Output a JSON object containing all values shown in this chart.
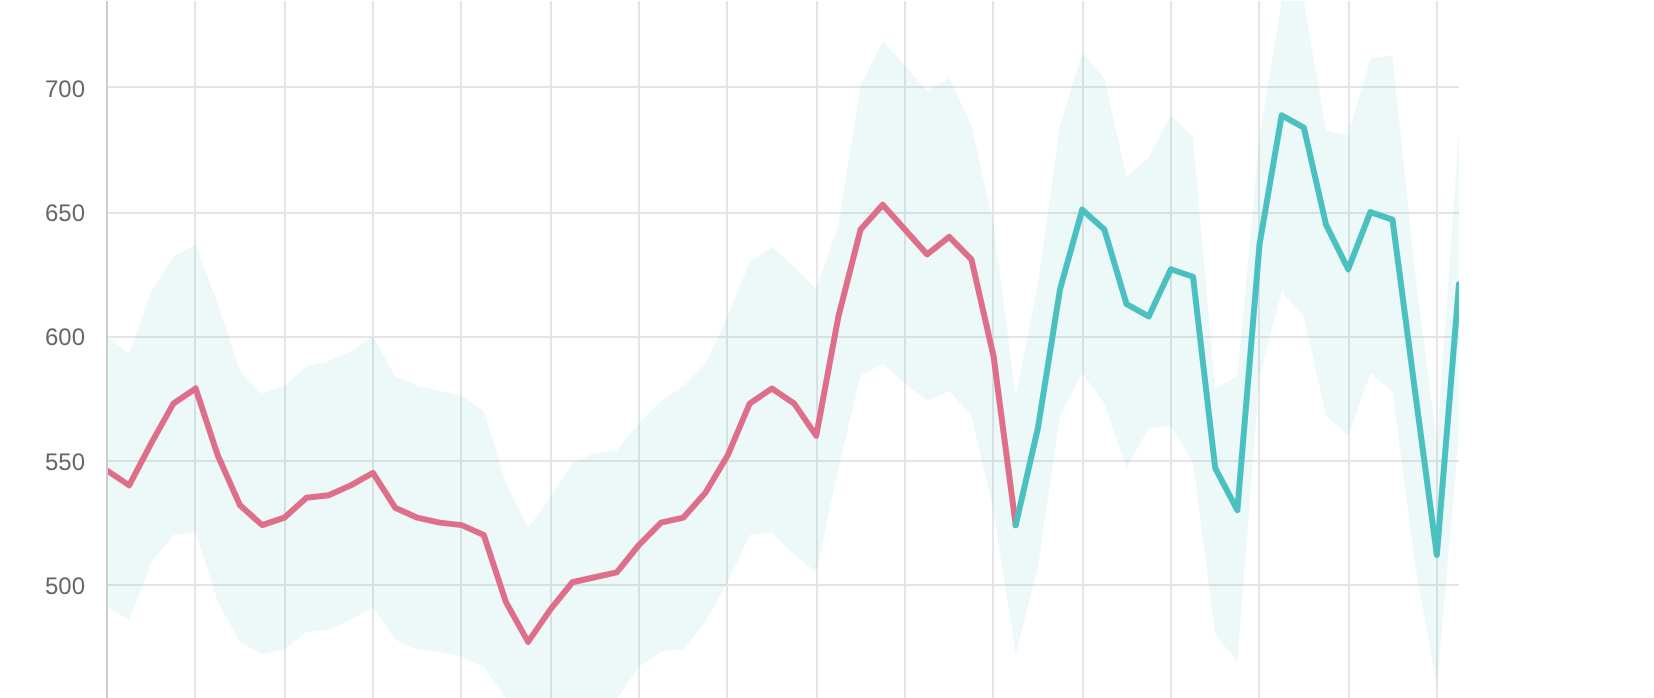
{
  "chart_data": {
    "type": "line",
    "categories": [
      null,
      null,
      null,
      null,
      null,
      null,
      null,
      null,
      null,
      null,
      null,
      null,
      null,
      null,
      null,
      null,
      null,
      null,
      null,
      null,
      null,
      null,
      null,
      null,
      null,
      null,
      null,
      null,
      null,
      null,
      null,
      null,
      null,
      null,
      null,
      null,
      null,
      null,
      null,
      null,
      null,
      null,
      null,
      null,
      null,
      null,
      null,
      null,
      null,
      null,
      null,
      null,
      null,
      null,
      null,
      null,
      null,
      null,
      null,
      null,
      null,
      null
    ],
    "series": [
      {
        "color": "#ef6583",
        "values": [
          546,
          540,
          557,
          573,
          579,
          552,
          532,
          524,
          527,
          535,
          536,
          540,
          545,
          531,
          527,
          525,
          524,
          520,
          493,
          477,
          490,
          501,
          503,
          505,
          516,
          525,
          527,
          537,
          552,
          573,
          579,
          573,
          560,
          608,
          643,
          653,
          643,
          633,
          640,
          631,
          592,
          524,
          null,
          null,
          null,
          null,
          null,
          null,
          null,
          null,
          null,
          null,
          null,
          null,
          null,
          null,
          null,
          null,
          null,
          null,
          null,
          null
        ]
      },
      {
        "color": "#4bc0c0",
        "values": [
          null,
          null,
          null,
          null,
          null,
          null,
          null,
          null,
          null,
          null,
          null,
          null,
          null,
          null,
          null,
          null,
          null,
          null,
          null,
          null,
          null,
          null,
          null,
          null,
          null,
          null,
          null,
          null,
          null,
          null,
          null,
          null,
          null,
          null,
          null,
          null,
          null,
          null,
          null,
          null,
          null,
          524,
          563,
          619,
          651,
          643,
          613,
          608,
          627,
          624,
          547,
          530,
          637,
          689,
          684,
          645,
          627,
          650,
          647,
          579,
          512,
          621
        ],
        "upper": [
          600,
          593,
          618,
          632,
          637,
          613,
          586,
          577,
          580,
          588,
          590,
          594,
          600,
          584,
          580,
          578,
          576,
          570,
          541,
          523,
          535,
          549,
          553,
          554,
          565,
          574,
          580,
          589,
          608,
          630,
          636,
          628,
          619,
          645,
          701,
          719,
          709,
          699,
          704,
          685,
          645,
          576,
          621,
          685,
          714,
          704,
          664,
          672,
          689,
          680,
          579,
          584,
          680,
          735,
          735,
          683,
          681,
          712,
          713,
          627,
          557,
          683
        ],
        "lower": [
          491,
          486,
          509,
          520,
          521,
          493,
          477,
          472,
          474,
          481,
          482,
          486,
          491,
          478,
          474,
          473,
          471,
          467,
          454,
          454,
          454,
          454,
          454,
          454,
          467,
          473,
          474,
          485,
          501,
          520,
          521,
          512,
          505,
          547,
          584,
          589,
          581,
          574,
          578,
          568,
          530,
          472,
          507,
          568,
          585,
          573,
          547,
          563,
          564,
          549,
          480,
          469,
          584,
          618,
          608,
          568,
          560,
          585,
          578,
          509,
          459,
          560
        ]
      }
    ],
    "ylim": [
      454,
      735
    ],
    "yticks": [
      500,
      550,
      600,
      650,
      700
    ],
    "grid": true,
    "tick_labels": "y",
    "marker": "none",
    "line_style": "solid"
  }
}
